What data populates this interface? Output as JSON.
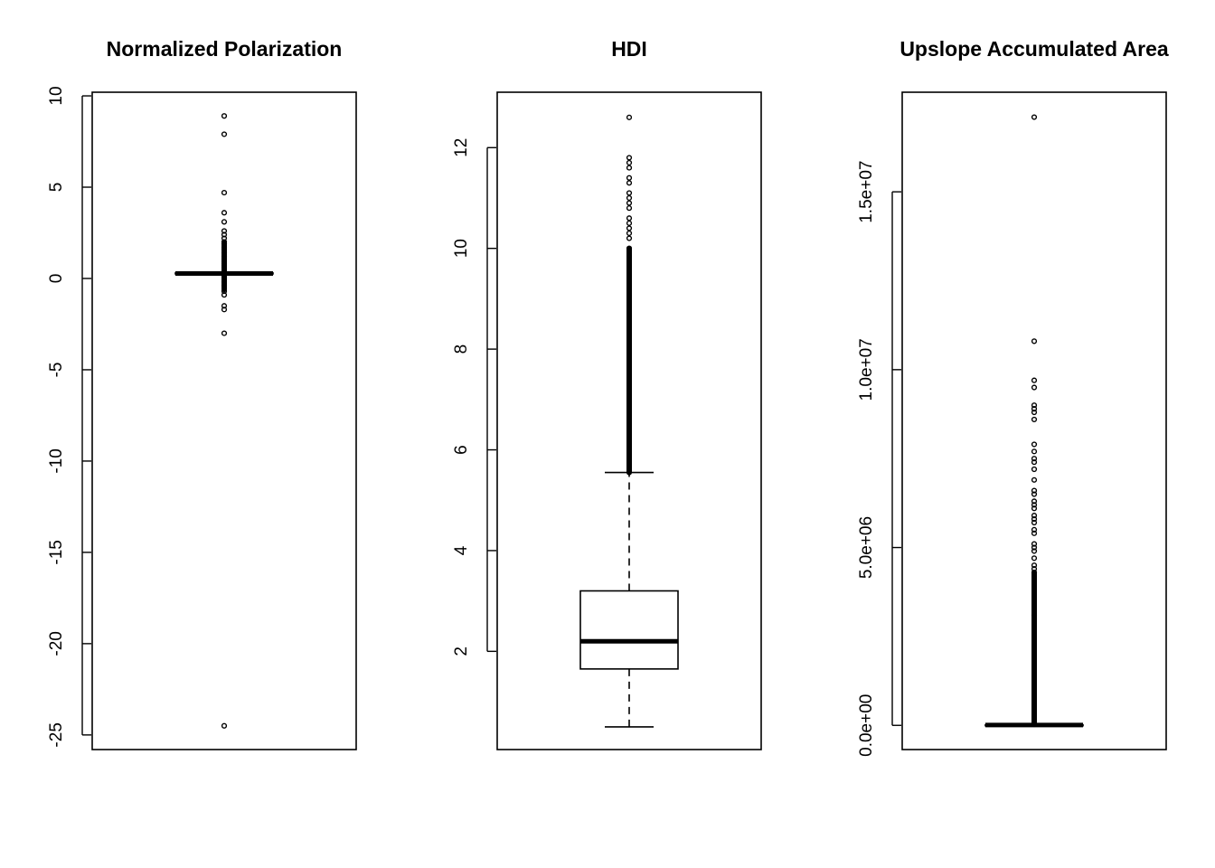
{
  "chart_data": [
    {
      "type": "boxplot",
      "title": "Normalized Polarization",
      "xlabel": "",
      "ylabel": "",
      "ylim": [
        -25.8,
        10.2
      ],
      "y_ticks": [
        -25,
        -20,
        -15,
        -10,
        -5,
        0,
        5,
        10
      ],
      "y_tick_labels": [
        "-25",
        "-20",
        "-15",
        "-10",
        "-5",
        "0",
        "5",
        "10"
      ],
      "box": {
        "whisker_low": 0.2,
        "q1": 0.25,
        "median": 0.27,
        "q3": 0.3,
        "whisker_high": 0.35
      },
      "outliers": [
        8.9,
        7.9,
        4.7,
        3.6,
        3.1,
        2.6,
        2.4,
        2.2,
        2.0,
        1.9,
        1.7,
        1.6,
        1.4,
        1.2,
        1.1,
        1.0,
        0.9,
        0.8,
        0.7,
        0.6,
        -0.2,
        -0.4,
        -0.7,
        -0.9,
        -1.5,
        -1.7,
        -3.0,
        -24.5
      ],
      "outlier_band": [
        -0.6,
        2.0
      ]
    },
    {
      "type": "boxplot",
      "title": "HDI",
      "xlabel": "",
      "ylabel": "",
      "ylim": [
        0.05,
        13.1
      ],
      "y_ticks": [
        2,
        4,
        6,
        8,
        10,
        12
      ],
      "y_tick_labels": [
        "2",
        "4",
        "6",
        "8",
        "10",
        "12"
      ],
      "box": {
        "whisker_low": 0.5,
        "q1": 1.65,
        "median": 2.2,
        "q3": 3.2,
        "whisker_high": 5.55
      },
      "outliers": [
        12.6,
        11.8,
        11.7,
        11.6,
        11.4,
        11.3,
        11.1,
        11.0,
        10.9,
        10.8,
        10.6,
        10.5,
        10.4,
        10.3,
        10.2,
        10.0
      ],
      "outlier_band": [
        5.55,
        10.0
      ]
    },
    {
      "type": "boxplot",
      "title": "Upslope Accumulated Area",
      "xlabel": "",
      "ylabel": "",
      "ylim": [
        -680000,
        17800000
      ],
      "y_ticks": [
        0,
        5000000,
        10000000,
        15000000
      ],
      "y_tick_labels": [
        "0.0e+00",
        "5.0e+06",
        "1.0e+07",
        "1.5e+07"
      ],
      "box": {
        "whisker_low": 0,
        "q1": 5000,
        "median": 10000,
        "q3": 15000,
        "whisker_high": 30000
      },
      "outliers": [
        17100000,
        10800000,
        9700000,
        9500000,
        9000000,
        8900000,
        8800000,
        8600000,
        7900000,
        7700000,
        7500000,
        7400000,
        7200000,
        6900000,
        6600000,
        6500000,
        6300000,
        6200000,
        6100000,
        5900000,
        5800000,
        5700000,
        5500000,
        5400000,
        5100000,
        5000000,
        4900000,
        4700000,
        4500000,
        4400000,
        4300000,
        3100000
      ],
      "outlier_band": [
        30000,
        4300000
      ]
    }
  ]
}
